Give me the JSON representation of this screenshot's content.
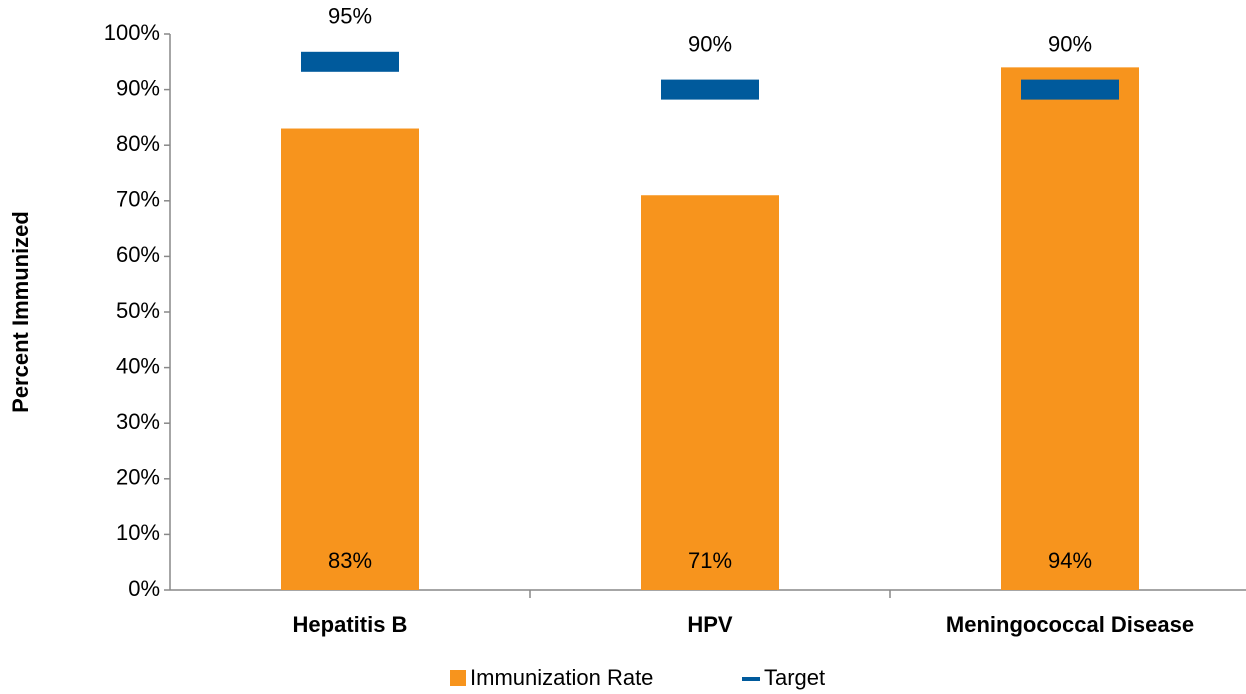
{
  "chart_data": {
    "type": "bar",
    "y_axis_label": "Percent Immunized",
    "categories": [
      "Hepatitis B",
      "HPV",
      "Meningococcal Disease"
    ],
    "series": [
      {
        "name": "Immunization Rate",
        "color": "#f7941d",
        "values": [
          83,
          71,
          94
        ],
        "value_labels": [
          "83%",
          "71%",
          "94%"
        ]
      },
      {
        "name": "Target",
        "color": "#005a9c",
        "values": [
          95,
          90,
          90
        ],
        "value_labels": [
          "95%",
          "90%",
          "90%"
        ]
      }
    ],
    "ylim": [
      0,
      100
    ],
    "yticks": [
      {
        "value": 0,
        "label": "0%"
      },
      {
        "value": 10,
        "label": "10%"
      },
      {
        "value": 20,
        "label": "20%"
      },
      {
        "value": 30,
        "label": "30%"
      },
      {
        "value": 40,
        "label": "40%"
      },
      {
        "value": 50,
        "label": "50%"
      },
      {
        "value": 60,
        "label": "60%"
      },
      {
        "value": 70,
        "label": "70%"
      },
      {
        "value": 80,
        "label": "80%"
      },
      {
        "value": 90,
        "label": "90%"
      },
      {
        "value": 100,
        "label": "100%"
      }
    ],
    "grid": false,
    "legend": "bottom"
  }
}
